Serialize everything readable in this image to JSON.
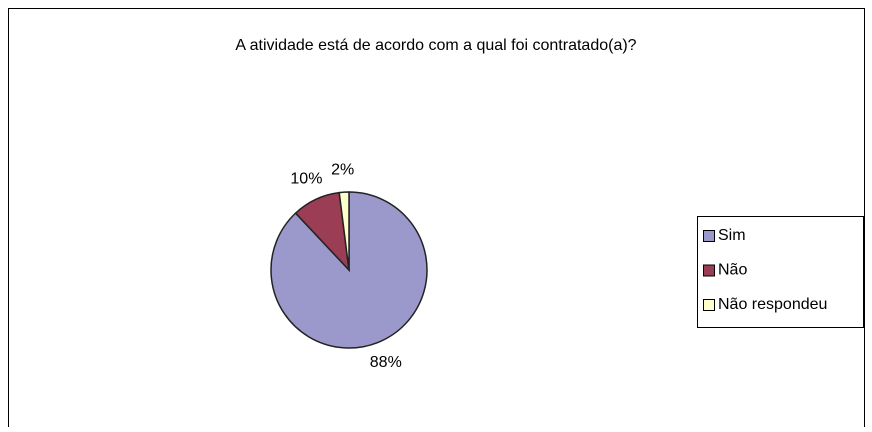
{
  "chart_data": {
    "type": "pie",
    "title": "A atividade está de acordo com a qual foi contratado(a)?",
    "categories": [
      "Sim",
      "Não",
      "Não respondeu"
    ],
    "values": [
      88,
      10,
      2
    ],
    "value_labels": [
      "88%",
      "10%",
      "2%"
    ],
    "colors": [
      "#9b98cc",
      "#9c3d56",
      "#ffffcc"
    ],
    "legend": "right"
  }
}
